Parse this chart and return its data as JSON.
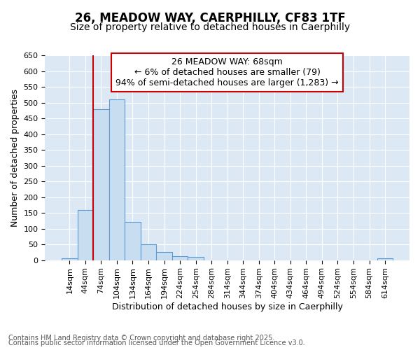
{
  "title1": "26, MEADOW WAY, CAERPHILLY, CF83 1TF",
  "title2": "Size of property relative to detached houses in Caerphilly",
  "xlabel": "Distribution of detached houses by size in Caerphilly",
  "ylabel": "Number of detached properties",
  "categories": [
    "14sqm",
    "44sqm",
    "74sqm",
    "104sqm",
    "134sqm",
    "164sqm",
    "194sqm",
    "224sqm",
    "254sqm",
    "284sqm",
    "314sqm",
    "344sqm",
    "374sqm",
    "404sqm",
    "434sqm",
    "464sqm",
    "494sqm",
    "524sqm",
    "554sqm",
    "584sqm",
    "614sqm"
  ],
  "values": [
    5,
    160,
    480,
    510,
    122,
    50,
    25,
    12,
    10,
    0,
    0,
    0,
    0,
    0,
    0,
    0,
    0,
    0,
    0,
    0,
    5
  ],
  "bar_color": "#c9ddf0",
  "bar_edge_color": "#5b9bd5",
  "bar_edge_width": 0.8,
  "vline_x": 2.0,
  "vline_color": "#cc0000",
  "vline_lw": 1.5,
  "ylim": [
    0,
    650
  ],
  "yticks": [
    0,
    50,
    100,
    150,
    200,
    250,
    300,
    350,
    400,
    450,
    500,
    550,
    600,
    650
  ],
  "annotation_text": "26 MEADOW WAY: 68sqm\n← 6% of detached houses are smaller (79)\n94% of semi-detached houses are larger (1,283) →",
  "bg_color": "#dce9f5",
  "grid_color": "#ffffff",
  "footer1": "Contains HM Land Registry data © Crown copyright and database right 2025.",
  "footer2": "Contains public sector information licensed under the Open Government Licence v3.0.",
  "title1_fontsize": 12,
  "title2_fontsize": 10,
  "xlabel_fontsize": 9,
  "ylabel_fontsize": 9,
  "tick_fontsize": 8,
  "annotation_fontsize": 9,
  "footer_fontsize": 7
}
